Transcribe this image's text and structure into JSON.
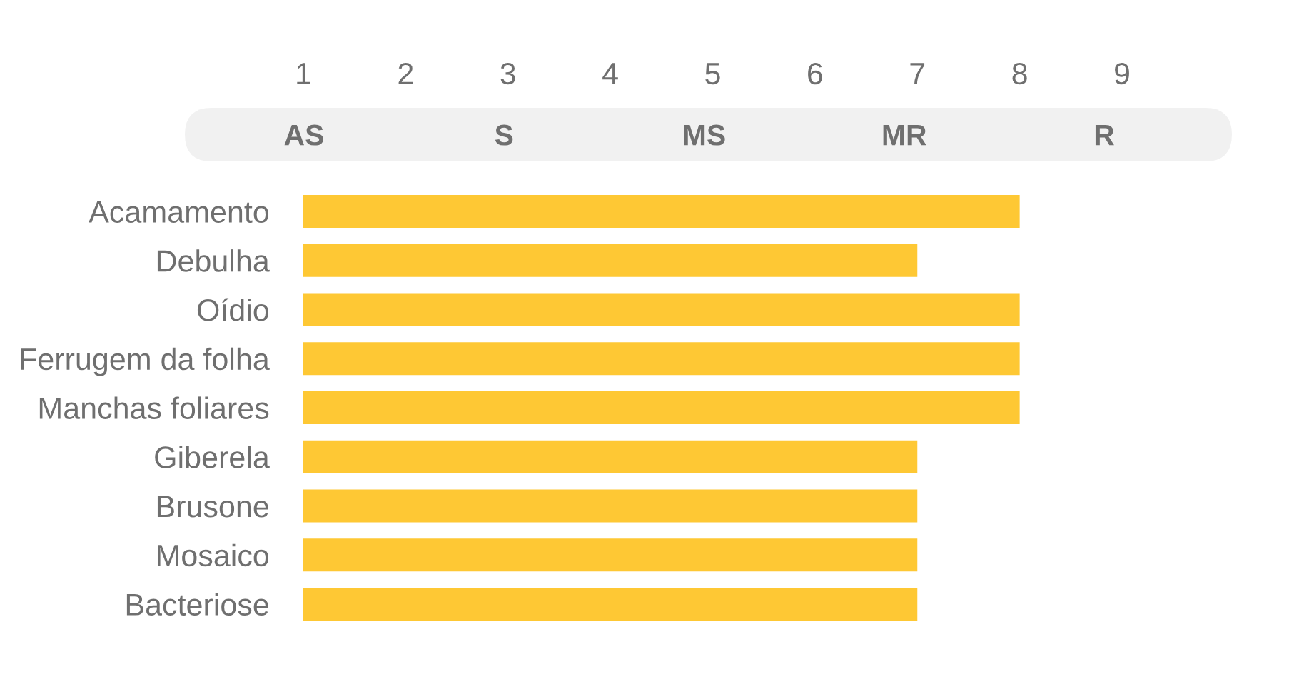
{
  "chart_data": {
    "type": "bar",
    "orientation": "horizontal",
    "categories": [
      "Acamamento",
      "Debulha",
      "Oídio",
      "Ferrugem da folha",
      "Manchas foliares",
      "Giberela",
      "Brusone",
      "Mosaico",
      "Bacteriose"
    ],
    "values": [
      8,
      7,
      8,
      8,
      8,
      7,
      7,
      7,
      7
    ],
    "color": "#fec834",
    "xlim": [
      1,
      9
    ],
    "xticks": [
      1,
      2,
      3,
      4,
      5,
      6,
      7,
      8,
      9
    ],
    "annotations": [
      "AS",
      "S",
      "MS",
      "MR",
      "R"
    ]
  }
}
